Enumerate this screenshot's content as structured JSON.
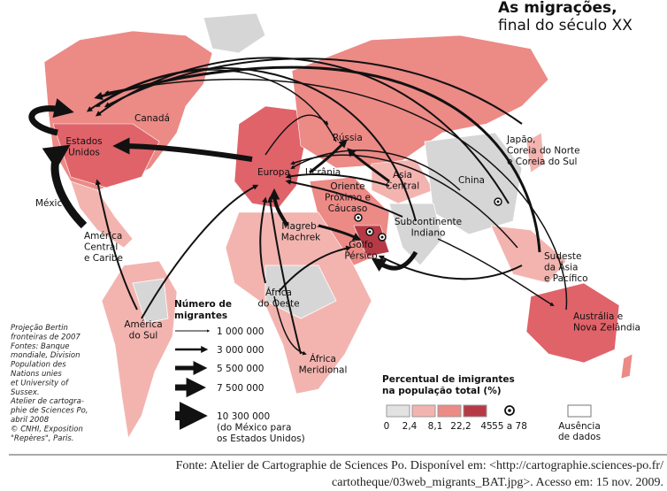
{
  "title": {
    "lines": [
      "As migrações,",
      "final do século XX"
    ]
  },
  "regions": [
    {
      "lines": [
        "Canadá"
      ]
    },
    {
      "lines": [
        "Estados",
        "Unidos"
      ]
    },
    {
      "lines": [
        "México"
      ]
    },
    {
      "lines": [
        "América",
        "Central",
        "e Caribe"
      ]
    },
    {
      "lines": [
        "América",
        "do Sul"
      ]
    },
    {
      "lines": [
        "Europa"
      ]
    },
    {
      "lines": [
        "Rússia"
      ]
    },
    {
      "lines": [
        "Ucrânia"
      ]
    },
    {
      "lines": [
        "Ásia",
        "Central"
      ]
    },
    {
      "lines": [
        "Oriente",
        "Próximo e",
        "Cáucaso"
      ]
    },
    {
      "lines": [
        "Magreb-",
        "Machrek"
      ]
    },
    {
      "lines": [
        "Golfo",
        "Pérsico"
      ]
    },
    {
      "lines": [
        "Subcontinente",
        "Indiano"
      ]
    },
    {
      "lines": [
        "China"
      ]
    },
    {
      "lines": [
        "Japão,",
        "Coreia do Norte",
        "e Coreia do Sul"
      ]
    },
    {
      "lines": [
        "Sudeste",
        "da Ásia",
        "e Pacífico"
      ]
    },
    {
      "lines": [
        "Austrália e",
        "Nova Zelândia"
      ]
    },
    {
      "lines": [
        "África",
        "do Oeste"
      ]
    },
    {
      "lines": [
        "África",
        "Meridional"
      ]
    }
  ],
  "legend_migrants": {
    "title": [
      "Número de",
      "migrantes"
    ],
    "items": [
      {
        "lines": [
          "1 000 000"
        ]
      },
      {
        "lines": [
          "3 000 000"
        ]
      },
      {
        "lines": [
          "5 500 000"
        ]
      },
      {
        "lines": [
          "7 500 000"
        ]
      },
      {
        "lines": [
          "10 300 000",
          "(do México para",
          "os Estados Unidos)"
        ]
      }
    ]
  },
  "legend_percent": {
    "title": [
      "Percentual de imigrantes",
      "na população total (%)"
    ],
    "ticks": [
      "0",
      "2,4",
      "8,1",
      "22,2",
      "45"
    ],
    "dot_label": "55 a 78",
    "no_data": [
      "Ausência",
      "de dados"
    ]
  },
  "credits": [
    "Projeção Bertin",
    "fronteiras de 2007",
    "Fontes: Banque",
    "mondiale, Division",
    "Population des",
    "Nations unies",
    "et University of",
    "Sussex.",
    "Atelier de cartogra-",
    "phie de Sciences Po,",
    "abril 2008",
    "© CNHI, Exposition",
    "\"Repères\", Paris."
  ],
  "footer": [
    "Fonte: Atelier de Cartographie de Sciences Po. Disponível em: <http://cartographie.sciences-po.fr/",
    "cartotheque/03web_migrants_BAT.jpg>. Acesso em: 15 nov. 2009."
  ]
}
